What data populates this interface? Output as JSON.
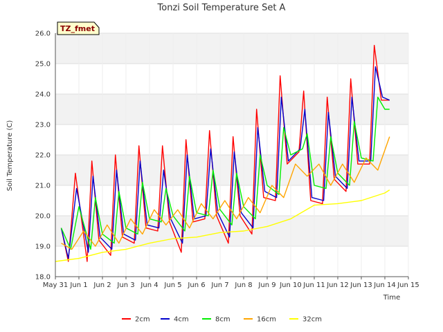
{
  "chart_data": {
    "type": "line",
    "title": "Tonzi Soil Temperature Set A",
    "xlabel": "Time",
    "ylabel": "Soil Temperature (C)",
    "badge": "TZ_fmet",
    "xlim": [
      0,
      15
    ],
    "ylim": [
      18.0,
      26.0
    ],
    "grid": true,
    "legend_placement": "bottom",
    "x_tick_labels": [
      "May 31",
      "Jun 1",
      "Jun 2",
      "Jun 3",
      "Jun 4",
      "Jun 5",
      "Jun 6",
      "Jun 7",
      "Jun 8",
      "Jun 9",
      "Jun 10",
      "Jun 11",
      "Jun 12",
      "Jun 13",
      "Jun 14",
      "Jun 15"
    ],
    "y_tick_labels": [
      "18.0",
      "19.0",
      "20.0",
      "21.0",
      "22.0",
      "23.0",
      "24.0",
      "25.0",
      "26.0"
    ],
    "x_unit": "days since May 31 00:00",
    "series": [
      {
        "name": "2cm",
        "color": "#ff0000",
        "x": [
          0.25,
          0.55,
          0.85,
          1.35,
          1.55,
          1.85,
          2.35,
          2.55,
          2.85,
          3.35,
          3.55,
          3.85,
          4.35,
          4.55,
          4.85,
          5.35,
          5.55,
          5.85,
          6.35,
          6.55,
          6.85,
          7.35,
          7.55,
          7.85,
          8.35,
          8.55,
          8.85,
          9.35,
          9.55,
          9.85,
          10.35,
          10.55,
          10.85,
          11.35,
          11.55,
          11.85,
          12.35,
          12.55,
          12.85,
          13.35,
          13.55,
          13.85,
          14.2
        ],
        "y": [
          19.6,
          18.5,
          21.4,
          18.5,
          21.8,
          19.2,
          18.7,
          22.0,
          19.3,
          19.1,
          22.3,
          19.6,
          19.5,
          22.3,
          19.8,
          18.8,
          22.5,
          19.8,
          19.9,
          22.8,
          20.0,
          19.1,
          22.6,
          20.0,
          19.4,
          23.5,
          20.6,
          20.5,
          24.6,
          21.7,
          22.1,
          24.1,
          20.5,
          20.4,
          23.9,
          21.2,
          20.8,
          24.5,
          21.7,
          21.7,
          25.6,
          23.8,
          23.8
        ]
      },
      {
        "name": "4cm",
        "color": "#0000cc",
        "x": [
          0.25,
          0.55,
          0.9,
          1.4,
          1.6,
          1.9,
          2.4,
          2.6,
          2.9,
          3.4,
          3.6,
          3.9,
          4.4,
          4.6,
          4.9,
          5.4,
          5.6,
          5.9,
          6.4,
          6.6,
          6.9,
          7.4,
          7.6,
          7.9,
          8.4,
          8.6,
          8.9,
          9.4,
          9.6,
          9.9,
          10.4,
          10.6,
          10.9,
          11.4,
          11.6,
          11.9,
          12.4,
          12.6,
          12.9,
          13.4,
          13.6,
          13.9,
          14.2
        ],
        "y": [
          19.6,
          18.6,
          20.9,
          18.8,
          21.3,
          19.3,
          18.9,
          21.5,
          19.4,
          19.2,
          21.8,
          19.7,
          19.6,
          21.5,
          19.9,
          19.1,
          22.0,
          19.9,
          20.0,
          22.2,
          20.1,
          19.3,
          22.1,
          20.1,
          19.6,
          22.9,
          20.8,
          20.6,
          23.9,
          21.8,
          22.2,
          23.5,
          20.6,
          20.5,
          23.4,
          21.3,
          20.9,
          23.9,
          21.8,
          21.8,
          24.9,
          23.9,
          23.8
        ]
      },
      {
        "name": "8cm",
        "color": "#00ee00",
        "x": [
          0.25,
          0.65,
          1.0,
          1.5,
          1.7,
          2.0,
          2.5,
          2.7,
          3.0,
          3.5,
          3.7,
          4.0,
          4.5,
          4.7,
          5.0,
          5.5,
          5.7,
          6.0,
          6.5,
          6.7,
          7.0,
          7.5,
          7.7,
          8.0,
          8.5,
          8.7,
          9.0,
          9.5,
          9.7,
          10.0,
          10.5,
          10.7,
          11.0,
          11.5,
          11.7,
          12.0,
          12.5,
          12.7,
          13.0,
          13.5,
          13.7,
          14.0,
          14.2
        ],
        "y": [
          19.6,
          18.9,
          20.3,
          18.9,
          20.6,
          19.4,
          19.1,
          20.8,
          19.6,
          19.4,
          21.1,
          19.9,
          19.8,
          20.9,
          20.0,
          19.5,
          21.3,
          20.1,
          20.0,
          21.5,
          20.2,
          19.7,
          21.4,
          20.3,
          19.9,
          22.0,
          21.0,
          20.7,
          22.9,
          22.0,
          22.2,
          22.7,
          21.0,
          20.9,
          22.6,
          21.4,
          21.0,
          23.1,
          21.9,
          21.8,
          23.9,
          23.5,
          23.5
        ]
      },
      {
        "name": "16cm",
        "color": "#ffa500",
        "x": [
          0.25,
          0.7,
          1.2,
          1.7,
          2.2,
          2.7,
          3.2,
          3.7,
          4.2,
          4.7,
          5.2,
          5.7,
          6.2,
          6.7,
          7.2,
          7.7,
          8.2,
          8.7,
          9.2,
          9.7,
          10.2,
          10.7,
          11.2,
          11.7,
          12.2,
          12.7,
          13.2,
          13.7,
          14.2
        ],
        "y": [
          19.1,
          18.9,
          19.5,
          19.0,
          19.7,
          19.1,
          19.9,
          19.4,
          20.2,
          19.7,
          20.2,
          19.6,
          20.4,
          19.9,
          20.5,
          19.9,
          20.6,
          20.1,
          21.0,
          20.6,
          21.7,
          21.3,
          21.7,
          21.0,
          21.7,
          21.1,
          21.9,
          21.5,
          22.6
        ]
      },
      {
        "name": "32cm",
        "color": "#ffff00",
        "x": [
          0,
          1,
          2,
          3,
          4,
          5,
          6,
          7,
          8,
          9,
          10,
          11,
          12,
          13,
          14,
          14.2
        ],
        "y": [
          18.5,
          18.6,
          18.8,
          18.9,
          19.1,
          19.25,
          19.3,
          19.45,
          19.5,
          19.65,
          19.9,
          20.35,
          20.4,
          20.5,
          20.75,
          20.85
        ]
      }
    ]
  }
}
